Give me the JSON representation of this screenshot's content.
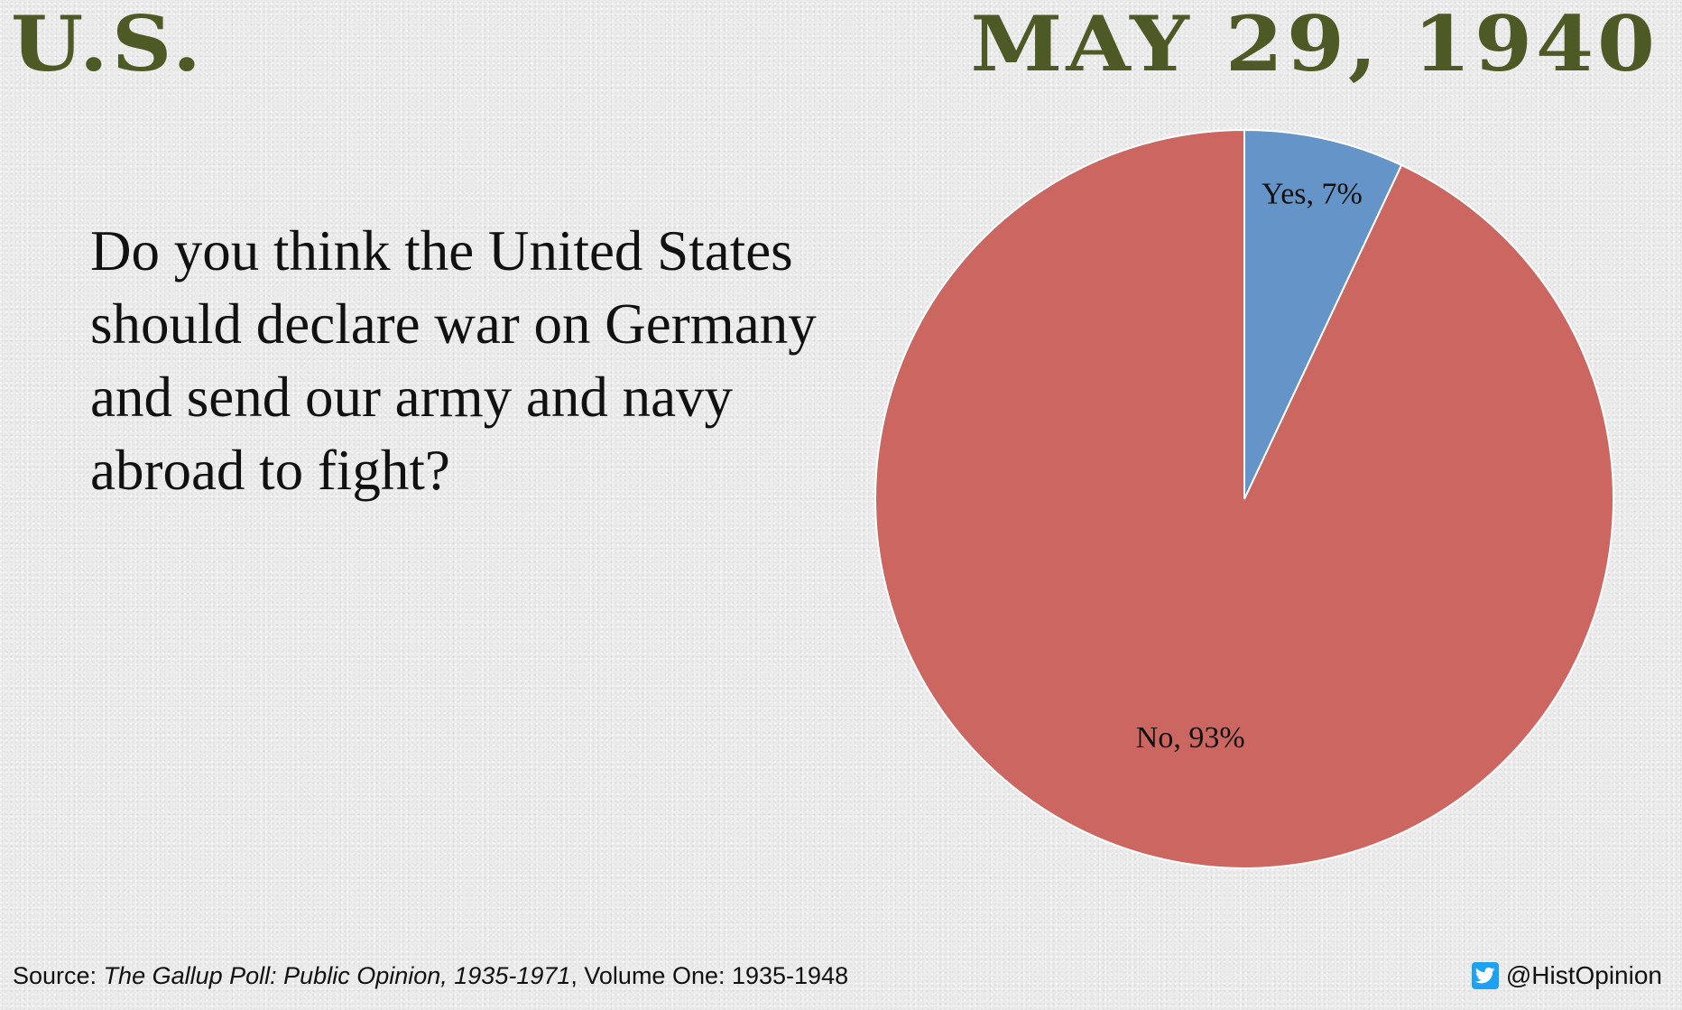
{
  "header": {
    "region": "U.S.",
    "date": "MAY 29, 1940"
  },
  "question": "Do you think the United States should declare war on Germany and send our army and navy abroad to fight?",
  "chart_data": {
    "type": "pie",
    "title": "",
    "categories": [
      "Yes",
      "No"
    ],
    "values": [
      7,
      93
    ],
    "unit": "%",
    "labels": [
      "Yes, 7%",
      "No, 93%"
    ],
    "colors": [
      "#6494c8",
      "#cb6661"
    ],
    "start_angle_deg": 0,
    "direction": "clockwise"
  },
  "footer": {
    "source_prefix": "Source: ",
    "source_title": "The Gallup Poll: Public Opinion, 1935-1971",
    "source_rest": ", Volume One: 1935-1948",
    "handle": "@HistOpinion",
    "icon": "twitter-bird-icon"
  },
  "colors": {
    "heading": "#4e5a25",
    "background": "#ececec"
  }
}
